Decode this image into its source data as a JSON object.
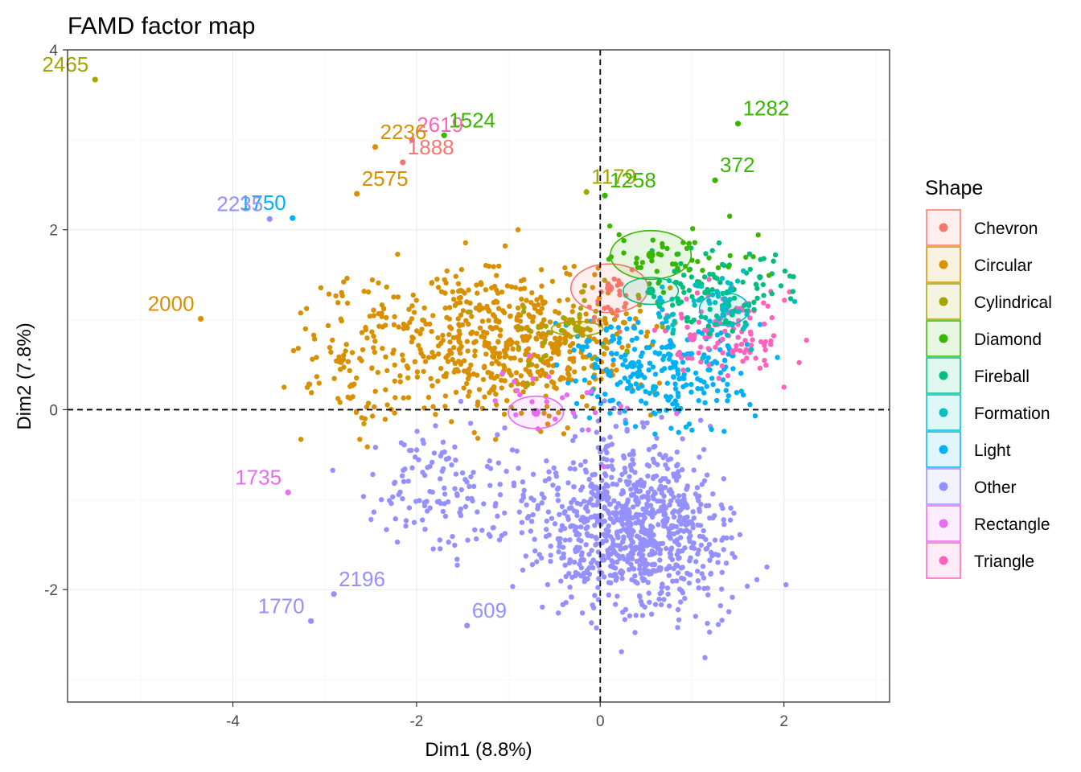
{
  "chart_data": {
    "type": "scatter",
    "title": "FAMD factor map",
    "xlabel": "Dim1 (8.8%)",
    "ylabel": "Dim2 (7.8%)",
    "xlim": [
      -5.8,
      3.15
    ],
    "ylim": [
      -3.25,
      4.0
    ],
    "x_ticks": [
      -4,
      -2,
      0,
      2
    ],
    "y_ticks": [
      -2,
      0,
      2,
      4
    ],
    "grid": true,
    "reference_lines": {
      "x": 0,
      "y": 0,
      "style": "dashed"
    },
    "legend": {
      "title": "Shape",
      "position": "right"
    },
    "series": [
      {
        "name": "Chevron",
        "color": "#F8766D",
        "centroid": [
          0.1,
          1.35
        ],
        "ellipse_r": [
          0.42,
          0.27
        ]
      },
      {
        "name": "Circular",
        "color": "#D89000",
        "centroid": [
          -0.5,
          0.7
        ],
        "ellipse_r": [
          0,
          0
        ]
      },
      {
        "name": "Cylindrical",
        "color": "#A3A500",
        "centroid": [
          -0.25,
          0.9
        ],
        "ellipse_r": [
          0.28,
          0.08
        ]
      },
      {
        "name": "Diamond",
        "color": "#39B600",
        "centroid": [
          0.55,
          1.72
        ],
        "ellipse_r": [
          0.44,
          0.27
        ]
      },
      {
        "name": "Fireball",
        "color": "#00BF7D",
        "centroid": [
          0.55,
          1.32
        ],
        "ellipse_r": [
          0.3,
          0.15
        ]
      },
      {
        "name": "Formation",
        "color": "#00BFC4",
        "centroid": [
          1.35,
          1.12
        ],
        "ellipse_r": [
          0.27,
          0.18
        ]
      },
      {
        "name": "Light",
        "color": "#00B0F6",
        "centroid": [
          0.35,
          0.5
        ],
        "ellipse_r": [
          0,
          0
        ]
      },
      {
        "name": "Other",
        "color": "#9590FF",
        "centroid": [
          0.3,
          -1.2
        ],
        "ellipse_r": [
          0,
          0
        ]
      },
      {
        "name": "Rectangle",
        "color": "#E76BF3",
        "centroid": [
          -0.7,
          -0.03
        ],
        "ellipse_r": [
          0.3,
          0.18
        ]
      },
      {
        "name": "Triangle",
        "color": "#FF62BC",
        "centroid": [
          1.0,
          0.8
        ],
        "ellipse_r": [
          0,
          0
        ]
      }
    ],
    "labeled_points": [
      {
        "label": "2465",
        "x": -5.5,
        "y": 3.67,
        "series": "Cylindrical"
      },
      {
        "label": "1282",
        "x": 1.5,
        "y": 3.18,
        "series": "Diamond"
      },
      {
        "label": "2619",
        "x": -2.05,
        "y": 3.0,
        "series": "Triangle"
      },
      {
        "label": "1524",
        "x": -1.7,
        "y": 3.05,
        "series": "Diamond"
      },
      {
        "label": "1888",
        "x": -2.15,
        "y": 2.75,
        "series": "Chevron"
      },
      {
        "label": "2236",
        "x": -2.45,
        "y": 2.92,
        "series": "Circular"
      },
      {
        "label": "372",
        "x": 1.25,
        "y": 2.55,
        "series": "Diamond"
      },
      {
        "label": "1179",
        "x": -0.15,
        "y": 2.42,
        "series": "Cylindrical"
      },
      {
        "label": "1258",
        "x": 0.05,
        "y": 2.38,
        "series": "Diamond"
      },
      {
        "label": "1750",
        "x": -3.35,
        "y": 2.13,
        "series": "Light"
      },
      {
        "label": "2575",
        "x": -2.65,
        "y": 2.4,
        "series": "Circular"
      },
      {
        "label": "2235",
        "x": -3.6,
        "y": 2.12,
        "series": "Other"
      },
      {
        "label": "2000",
        "x": -4.35,
        "y": 1.01,
        "series": "Circular"
      },
      {
        "label": "1735",
        "x": -3.4,
        "y": -0.92,
        "series": "Rectangle"
      },
      {
        "label": "2196",
        "x": -2.9,
        "y": -2.05,
        "series": "Other"
      },
      {
        "label": "1770",
        "x": -3.15,
        "y": -2.35,
        "series": "Other"
      },
      {
        "label": "609",
        "x": -1.45,
        "y": -2.4,
        "series": "Other"
      }
    ]
  }
}
